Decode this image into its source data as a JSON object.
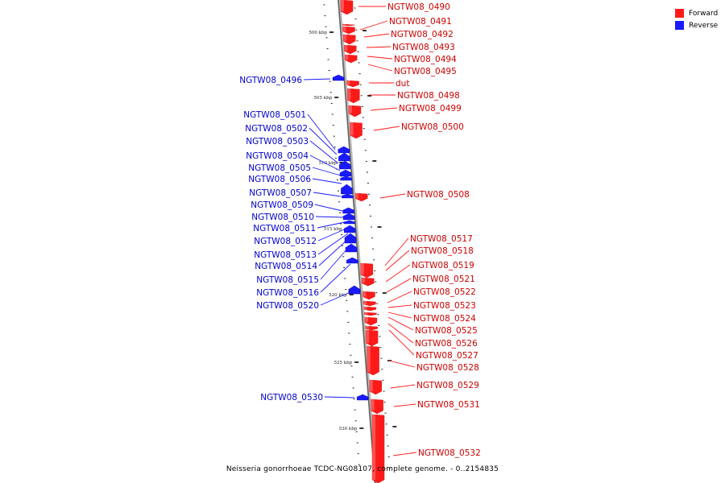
{
  "title": "Neisseria gonorrhoeae TCDC-NG08107, complete genome. - 0..2154835",
  "legend": [
    {
      "label": "Forward",
      "color": "#ff1a1a"
    },
    {
      "label": "Reverse",
      "color": "#1a1aff"
    }
  ],
  "colors": {
    "forward": "#ff1a1a",
    "reverse": "#1a1aff",
    "backbone": "#888888"
  },
  "scale_labels": [
    "500 kbp",
    "505 kbp",
    "510 kbp",
    "515 kbp",
    "520 kbp",
    "525 kbp",
    "530 kbp"
  ],
  "genes": [
    {
      "name": "NGTW08_0490",
      "strand": "forward"
    },
    {
      "name": "NGTW08_0491",
      "strand": "forward"
    },
    {
      "name": "NGTW08_0492",
      "strand": "forward"
    },
    {
      "name": "NGTW08_0493",
      "strand": "forward"
    },
    {
      "name": "NGTW08_0494",
      "strand": "forward"
    },
    {
      "name": "NGTW08_0495",
      "strand": "forward"
    },
    {
      "name": "NGTW08_0496",
      "strand": "reverse"
    },
    {
      "name": "dut",
      "strand": "forward"
    },
    {
      "name": "NGTW08_0498",
      "strand": "forward"
    },
    {
      "name": "NGTW08_0499",
      "strand": "forward"
    },
    {
      "name": "NGTW08_0500",
      "strand": "forward"
    },
    {
      "name": "NGTW08_0501",
      "strand": "reverse"
    },
    {
      "name": "NGTW08_0502",
      "strand": "reverse"
    },
    {
      "name": "NGTW08_0503",
      "strand": "reverse"
    },
    {
      "name": "NGTW08_0504",
      "strand": "reverse"
    },
    {
      "name": "NGTW08_0505",
      "strand": "reverse"
    },
    {
      "name": "NGTW08_0506",
      "strand": "reverse"
    },
    {
      "name": "NGTW08_0507",
      "strand": "reverse"
    },
    {
      "name": "NGTW08_0508",
      "strand": "forward"
    },
    {
      "name": "NGTW08_0509",
      "strand": "reverse"
    },
    {
      "name": "NGTW08_0510",
      "strand": "reverse"
    },
    {
      "name": "NGTW08_0511",
      "strand": "reverse"
    },
    {
      "name": "NGTW08_0512",
      "strand": "reverse"
    },
    {
      "name": "NGTW08_0513",
      "strand": "reverse"
    },
    {
      "name": "NGTW08_0514",
      "strand": "reverse"
    },
    {
      "name": "NGTW08_0515",
      "strand": "reverse"
    },
    {
      "name": "NGTW08_0516",
      "strand": "reverse"
    },
    {
      "name": "NGTW08_0517",
      "strand": "forward"
    },
    {
      "name": "NGTW08_0518",
      "strand": "forward"
    },
    {
      "name": "NGTW08_0519",
      "strand": "forward"
    },
    {
      "name": "NGTW08_0520",
      "strand": "reverse"
    },
    {
      "name": "NGTW08_0521",
      "strand": "forward"
    },
    {
      "name": "NGTW08_0522",
      "strand": "forward"
    },
    {
      "name": "NGTW08_0523",
      "strand": "forward"
    },
    {
      "name": "NGTW08_0524",
      "strand": "forward"
    },
    {
      "name": "NGTW08_0525",
      "strand": "forward"
    },
    {
      "name": "NGTW08_0526",
      "strand": "forward"
    },
    {
      "name": "NGTW08_0527",
      "strand": "forward"
    },
    {
      "name": "NGTW08_0528",
      "strand": "forward"
    },
    {
      "name": "NGTW08_0529",
      "strand": "forward"
    },
    {
      "name": "NGTW08_0530",
      "strand": "reverse"
    },
    {
      "name": "NGTW08_0531",
      "strand": "forward"
    },
    {
      "name": "NGTW08_0532",
      "strand": "forward"
    }
  ]
}
